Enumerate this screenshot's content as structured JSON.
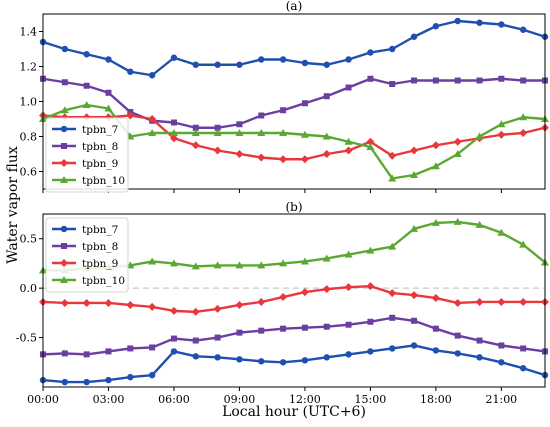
{
  "figure": {
    "ylabel": "Water vapor flux",
    "xlabel": "Local hour (UTC+6)"
  },
  "chart_data": [
    {
      "type": "line",
      "title": "(a)",
      "ylabel": "Water vapor flux",
      "xlabel": "",
      "x_labels": [
        "00:00",
        "03:00",
        "06:00",
        "09:00",
        "12:00",
        "15:00",
        "18:00",
        "21:00"
      ],
      "x_tick_hours": [
        0,
        3,
        6,
        9,
        12,
        15,
        18,
        21
      ],
      "xlim": [
        0,
        23
      ],
      "ylim": [
        0.5,
        1.5
      ],
      "yticks": [
        0.6,
        0.8,
        1.0,
        1.2,
        1.4
      ],
      "ytick_labels": [
        "0.6",
        "0.8",
        "1.0",
        "1.2",
        "1.4"
      ],
      "legend_position": "left",
      "grid": false,
      "hours": [
        0,
        1,
        2,
        3,
        4,
        5,
        6,
        7,
        8,
        9,
        10,
        11,
        12,
        13,
        14,
        15,
        16,
        17,
        18,
        19,
        20,
        21,
        22,
        23
      ],
      "series": [
        {
          "name": "tpbn_7",
          "color": "#1f4fb0",
          "marker": "circle",
          "values": [
            1.34,
            1.3,
            1.27,
            1.24,
            1.17,
            1.15,
            1.25,
            1.21,
            1.21,
            1.21,
            1.24,
            1.24,
            1.22,
            1.21,
            1.24,
            1.28,
            1.3,
            1.37,
            1.43,
            1.46,
            1.45,
            1.44,
            1.41,
            1.37
          ]
        },
        {
          "name": "tpbn_8",
          "color": "#6a3fa0",
          "marker": "square",
          "values": [
            1.13,
            1.11,
            1.09,
            1.05,
            0.94,
            0.89,
            0.88,
            0.85,
            0.85,
            0.87,
            0.92,
            0.95,
            0.99,
            1.03,
            1.08,
            1.13,
            1.1,
            1.12,
            1.12,
            1.12,
            1.12,
            1.13,
            1.12,
            1.12
          ]
        },
        {
          "name": "tpbn_9",
          "color": "#e8383d",
          "marker": "diamond",
          "values": [
            0.92,
            0.91,
            0.91,
            0.91,
            0.92,
            0.9,
            0.79,
            0.75,
            0.72,
            0.7,
            0.68,
            0.67,
            0.67,
            0.7,
            0.72,
            0.77,
            0.69,
            0.72,
            0.75,
            0.77,
            0.79,
            0.81,
            0.82,
            0.85
          ]
        },
        {
          "name": "tpbn_10",
          "color": "#5aa832",
          "marker": "triangle",
          "values": [
            0.9,
            0.95,
            0.98,
            0.96,
            0.8,
            0.82,
            0.82,
            0.82,
            0.82,
            0.82,
            0.82,
            0.82,
            0.81,
            0.8,
            0.77,
            0.74,
            0.56,
            0.58,
            0.63,
            0.7,
            0.8,
            0.87,
            0.91,
            0.9
          ]
        }
      ]
    },
    {
      "type": "line",
      "title": "(b)",
      "ylabel": "Water vapor flux",
      "xlabel": "Local hour (UTC+6)",
      "x_labels": [
        "00:00",
        "03:00",
        "06:00",
        "09:00",
        "12:00",
        "15:00",
        "18:00",
        "21:00"
      ],
      "x_tick_hours": [
        0,
        3,
        6,
        9,
        12,
        15,
        18,
        21
      ],
      "xlim": [
        0,
        23
      ],
      "ylim": [
        -1.0,
        0.75
      ],
      "yticks": [
        -0.5,
        0.0,
        0.5
      ],
      "ytick_labels": [
        "-0.5",
        "0.0",
        "0.5"
      ],
      "reference_line": 0.0,
      "legend_position": "upper-left",
      "grid": false,
      "hours": [
        0,
        1,
        2,
        3,
        4,
        5,
        6,
        7,
        8,
        9,
        10,
        11,
        12,
        13,
        14,
        15,
        16,
        17,
        18,
        19,
        20,
        21,
        22,
        23
      ],
      "series": [
        {
          "name": "tpbn_7",
          "color": "#1f4fb0",
          "marker": "circle",
          "values": [
            -0.93,
            -0.95,
            -0.95,
            -0.93,
            -0.9,
            -0.88,
            -0.64,
            -0.69,
            -0.7,
            -0.72,
            -0.74,
            -0.75,
            -0.73,
            -0.7,
            -0.67,
            -0.64,
            -0.61,
            -0.58,
            -0.63,
            -0.66,
            -0.7,
            -0.75,
            -0.81,
            -0.88
          ]
        },
        {
          "name": "tpbn_8",
          "color": "#6a3fa0",
          "marker": "square",
          "values": [
            -0.67,
            -0.66,
            -0.67,
            -0.64,
            -0.61,
            -0.6,
            -0.51,
            -0.53,
            -0.5,
            -0.45,
            -0.43,
            -0.41,
            -0.4,
            -0.39,
            -0.37,
            -0.34,
            -0.3,
            -0.33,
            -0.41,
            -0.48,
            -0.53,
            -0.58,
            -0.61,
            -0.64
          ]
        },
        {
          "name": "tpbn_9",
          "color": "#e8383d",
          "marker": "diamond",
          "values": [
            -0.14,
            -0.15,
            -0.15,
            -0.15,
            -0.17,
            -0.19,
            -0.23,
            -0.24,
            -0.21,
            -0.17,
            -0.14,
            -0.09,
            -0.04,
            -0.01,
            0.01,
            0.02,
            -0.05,
            -0.07,
            -0.1,
            -0.15,
            -0.14,
            -0.14,
            -0.14,
            -0.14
          ]
        },
        {
          "name": "tpbn_10",
          "color": "#5aa832",
          "marker": "triangle",
          "values": [
            0.18,
            0.18,
            0.2,
            0.21,
            0.23,
            0.27,
            0.25,
            0.22,
            0.23,
            0.23,
            0.23,
            0.25,
            0.27,
            0.3,
            0.34,
            0.38,
            0.42,
            0.6,
            0.66,
            0.67,
            0.64,
            0.56,
            0.44,
            0.26
          ]
        }
      ]
    }
  ]
}
